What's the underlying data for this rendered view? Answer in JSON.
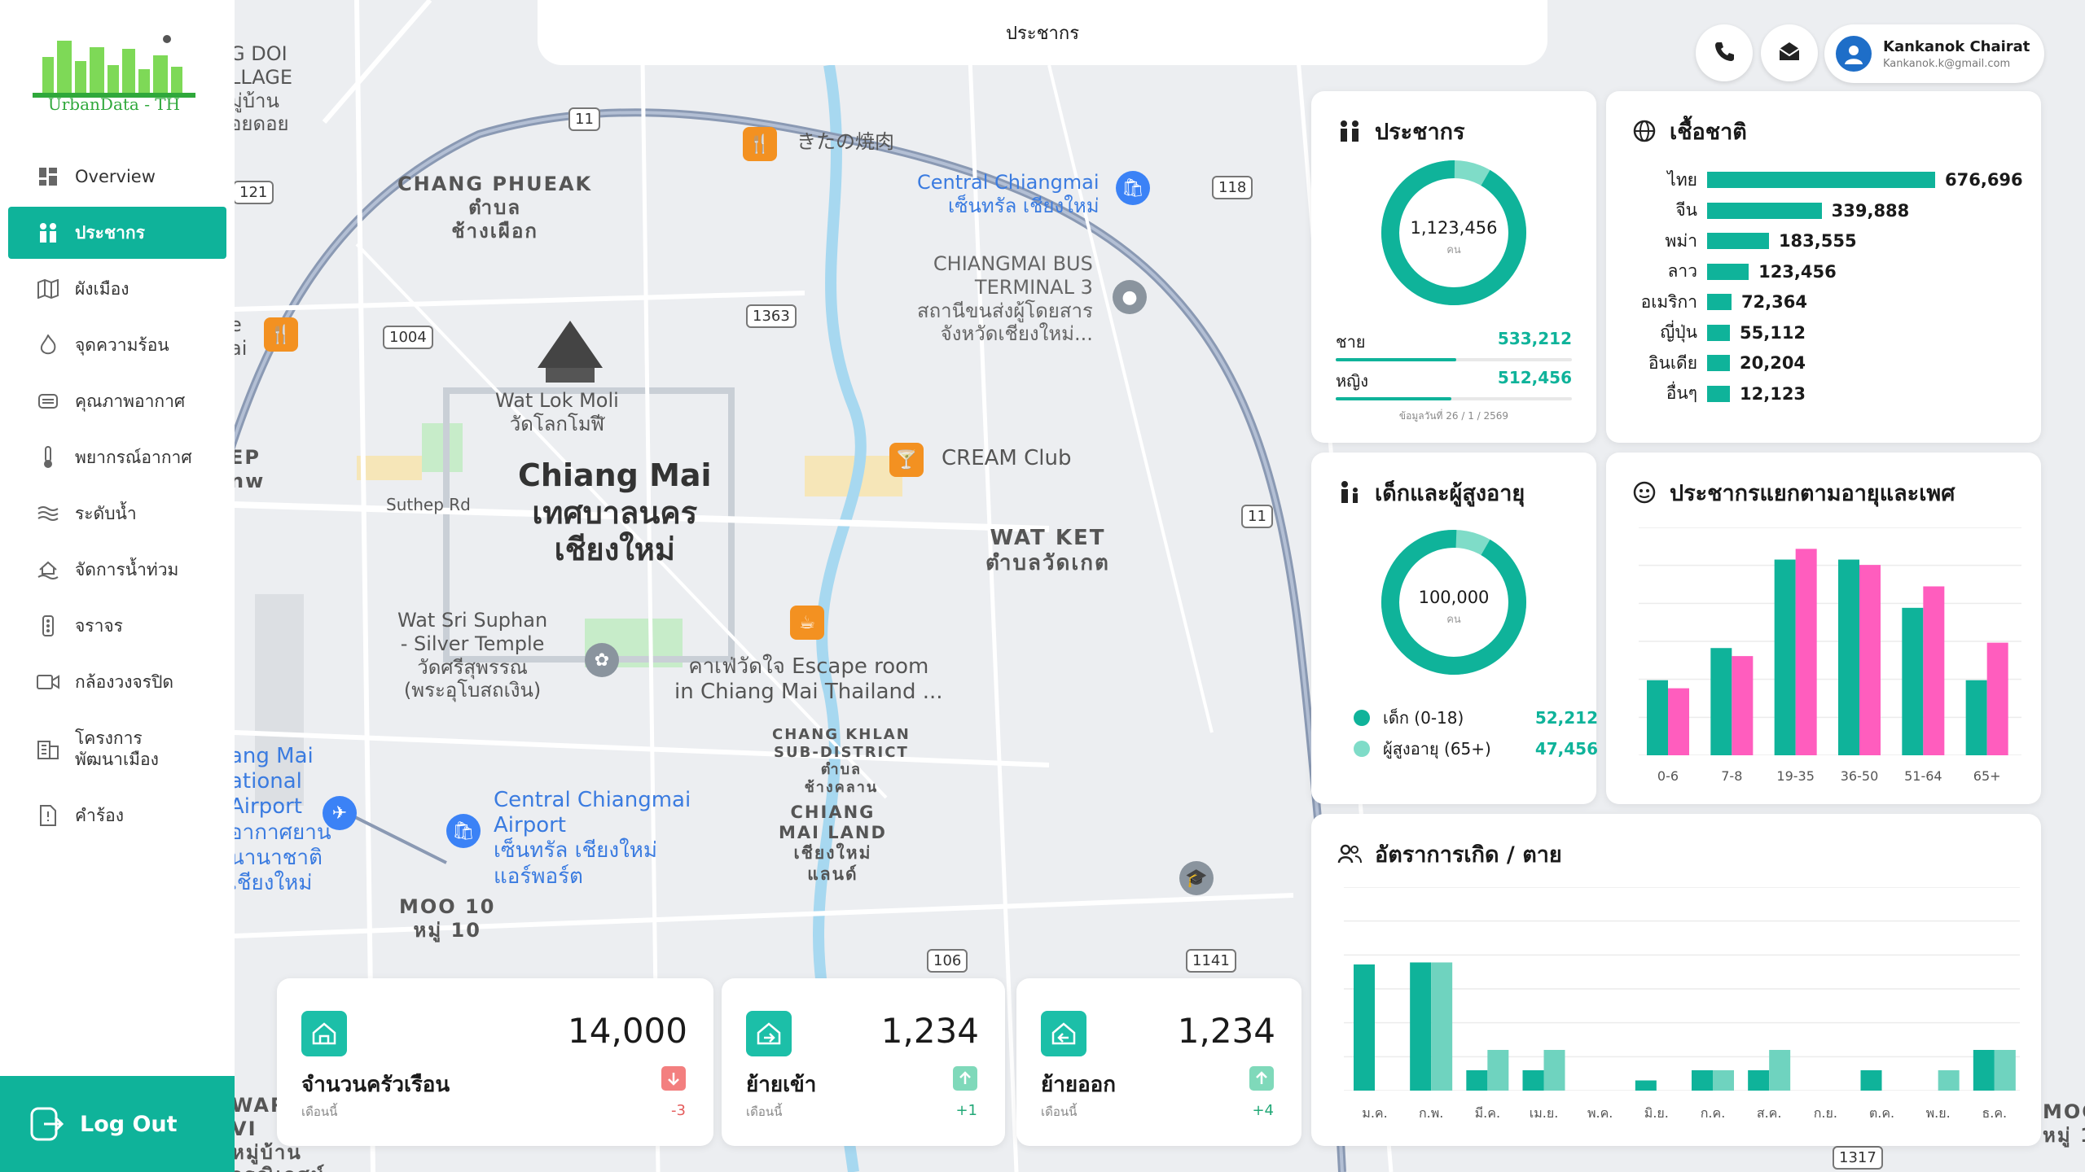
{
  "app": {
    "logo_text": "UrbanData - TH",
    "search_placeholder": "ประชากร"
  },
  "sidebar": {
    "items": [
      {
        "label": "Overview",
        "icon": "dashboard-icon"
      },
      {
        "label": "ประชากร",
        "icon": "people-icon",
        "active": true
      },
      {
        "label": "ผังเมือง",
        "icon": "map-icon"
      },
      {
        "label": "จุดความร้อน",
        "icon": "fire-icon"
      },
      {
        "label": "คุณภาพอากาศ",
        "icon": "air-icon"
      },
      {
        "label": "พยากรณ์อากาศ",
        "icon": "thermometer-icon"
      },
      {
        "label": "ระดับน้ำ",
        "icon": "water-icon"
      },
      {
        "label": "จัดการน้ำท่วม",
        "icon": "flood-icon"
      },
      {
        "label": "จราจร",
        "icon": "traffic-icon"
      },
      {
        "label": "กล้องวงจรปิด",
        "icon": "cctv-icon"
      },
      {
        "label": "โครงการ\nพัฒนาเมือง",
        "icon": "building-icon"
      },
      {
        "label": "คำร้อง",
        "icon": "report-icon"
      }
    ],
    "logout_label": "Log Out"
  },
  "user": {
    "name": "Kankanok Chairat",
    "email": "Kankanok.k@gmail.com"
  },
  "map": {
    "labels": {
      "chang_phueak": "CHANG PHUEAK\nตำบล\nช้างเผือก",
      "kitano": "きたの焼肉",
      "central_top": "Central Chiangmai\nเซ็นทรัล เชียงใหม่",
      "bus_terminal": "CHIANGMAI BUS\nTERMINAL 3\nสถานีขนส่งผู้โดยสาร\nจังหวัดเชียงใหม่...",
      "wat_lok_moli": "Wat Lok Moli\nวัดโลกโมฬี",
      "chiang_mai": "Chiang Mai\nเทศบาลนคร\nเชียงใหม่",
      "suthep": "Suthep Rd",
      "cream_club": "CREAM Club",
      "wat_ket": "WAT KET\nตำบลวัดเกต",
      "wat_sri_suphan": "Wat Sri Suphan\n- Silver Temple\nวัดศรีสุพรรณ\n(พระอุโบสถเงิน)",
      "escape_room": "คาเฟ่วัดใจ Escape room\nin Chiang Mai Thailand ...",
      "chang_khlan": "CHANG KHLAN\nSUB-DISTRICT\nตำบล\nช้างคลาน",
      "mai_land": "CHIANG\nMAI LAND\nเชียงใหม่\nแลนด์",
      "airport": "ang Mai\national\nAirport\nอากาศยาน\nนานาชาติ\nเชียงใหม่",
      "central_airport": "Central Chiangmai\nAirport\nเซ็นทรัล เชียงใหม่\nแอร์พอร์ต",
      "moo10": "MOO 10\nหมู่ 10",
      "doi_village": "G DOI\nLLAGE\nมู่บ้าน\nอยดอย",
      "left_e": "e\nai",
      "left_ep": "EP\nnw",
      "bottom_left": "WARI\nVI\nหมู่บ้าน\nวรณิเวศน์",
      "bottom_right": "MOO\nหมู่ 1"
    },
    "road_signs": [
      "11",
      "121",
      "1363",
      "1004",
      "118",
      "11",
      "106",
      "1141",
      "1317"
    ]
  },
  "cards": {
    "population": {
      "title": "ประชากร",
      "total": "1,123,456",
      "unit": "คน",
      "male_label": "ชาย",
      "male_value": "533,212",
      "female_label": "หญิง",
      "female_value": "512,456",
      "male_fraction": 0.51,
      "female_fraction": 0.49,
      "note": "ข้อมูลวันที่ 26 / 1 / 2569"
    },
    "ethnicity": {
      "title": "เชื้อชาติ",
      "rows": [
        {
          "label": "ไทย",
          "value": "676,696",
          "n": 676696
        },
        {
          "label": "จีน",
          "value": "339,888",
          "n": 339888
        },
        {
          "label": "พม่า",
          "value": "183,555",
          "n": 183555
        },
        {
          "label": "ลาว",
          "value": "123,456",
          "n": 123456
        },
        {
          "label": "อเมริกา",
          "value": "72,364",
          "n": 72364
        },
        {
          "label": "ญี่ปุ่น",
          "value": "55,112",
          "n": 55112
        },
        {
          "label": "อินเดีย",
          "value": "20,204",
          "n": 20204
        },
        {
          "label": "อื่นๆ",
          "value": "12,123",
          "n": 12123
        }
      ]
    },
    "age": {
      "title": "เด็กและผู้สูงอายุ",
      "total": "100,000",
      "unit": "คน",
      "child_label": "เด็ก (0-18)",
      "child_value": "52,212",
      "elder_label": "ผู้สูงอายุ (65+)",
      "elder_value": "47,456"
    },
    "age_gender": {
      "title": "ประชากรแยกตามอายุและเพศ"
    },
    "birth_death": {
      "title": "อัตราการเกิด / ตาย"
    },
    "households": {
      "value": "14,000",
      "label": "จำนวนครัวเรือน",
      "sub": "เดือนนี้",
      "delta": "-3"
    },
    "move_in": {
      "value": "1,234",
      "label": "ย้ายเข้า",
      "sub": "เดือนนี้",
      "delta": "+1"
    },
    "move_out": {
      "value": "1,234",
      "label": "ย้ายออก",
      "sub": "เดือนนี้",
      "delta": "+4"
    }
  },
  "colors": {
    "primary": "#0fb39a",
    "secondary": "#7fdcc8",
    "female": "#ff5dbe",
    "light_teal": "#6fd3bf"
  },
  "chart_data": [
    {
      "type": "bar",
      "categories": [
        "0-6",
        "7-8",
        "19-35",
        "36-50",
        "51-64",
        "65+"
      ],
      "series": [
        {
          "values": [
            28,
            40,
            73,
            73,
            55,
            28
          ]
        },
        {
          "values": [
            25,
            37,
            77,
            71,
            63,
            42
          ]
        }
      ],
      "ylim": [
        0,
        85
      ]
    },
    {
      "type": "bar",
      "categories": [
        "ม.ค.",
        "ก.พ.",
        "มี.ค.",
        "เม.ย.",
        "พ.ค.",
        "มิ.ย.",
        "ก.ค.",
        "ส.ค.",
        "ก.ย.",
        "ต.ค.",
        "พ.ย.",
        "ธ.ค."
      ],
      "series": [
        {
          "values": [
            62,
            63,
            10,
            10,
            0,
            5,
            10,
            10,
            0,
            10,
            0,
            20
          ]
        },
        {
          "values": [
            0,
            63,
            20,
            20,
            0,
            0,
            10,
            20,
            0,
            0,
            10,
            20
          ]
        }
      ],
      "ylim": [
        0,
        100
      ]
    }
  ]
}
